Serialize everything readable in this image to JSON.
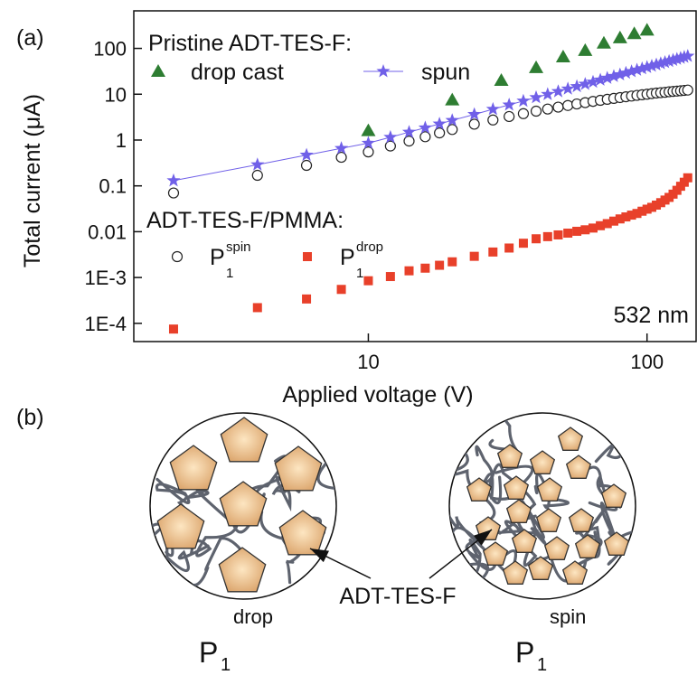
{
  "chart_data": {
    "type": "scatter",
    "panel_label": "(a)",
    "xlabel": "Applied voltage (V)",
    "ylabel": "Total current (μA)",
    "xscale": "log",
    "yscale": "log",
    "xlim": [
      1.44,
      150
    ],
    "ylim": [
      4e-05,
      660
    ],
    "xticks": [
      10,
      100
    ],
    "yticks": [
      {
        "value": 0.0001,
        "label": "1E-4"
      },
      {
        "value": 0.001,
        "label": "1E-3"
      },
      0.01,
      0.1,
      1,
      10,
      100
    ],
    "legend_titles": [
      "Pristine ADT-TES-F:",
      "ADT-TES-F/PMMA:"
    ],
    "annotations": [
      "532 nm"
    ],
    "x": [
      2,
      4,
      6,
      8,
      10,
      12,
      14,
      16,
      18,
      20,
      24,
      28,
      32,
      36,
      40,
      44,
      48,
      52,
      56,
      60,
      64,
      68,
      72,
      76,
      80,
      84,
      88,
      92,
      96,
      100,
      104,
      108,
      112,
      116,
      120,
      124,
      128,
      132,
      136,
      140
    ],
    "series": [
      {
        "name": "drop cast",
        "marker": "triangle",
        "color": "#2e7d32",
        "x": [
          10,
          20,
          30,
          40,
          50,
          60,
          70,
          80,
          90,
          100
        ],
        "values": [
          1.6,
          7.5,
          20,
          38,
          65,
          90,
          130,
          170,
          210,
          250
        ]
      },
      {
        "name": "spun",
        "marker": "star",
        "color": "#7060e8",
        "line": true,
        "values": [
          0.13,
          0.29,
          0.47,
          0.66,
          0.855,
          1.15,
          1.49,
          1.85,
          2.25,
          2.69,
          3.63,
          4.7,
          5.86,
          7.12,
          8.49,
          9.95,
          11.5,
          13.1,
          14.8,
          16.6,
          18.5,
          20.5,
          22.5,
          24.6,
          26.8,
          29.1,
          31.4,
          33.8,
          36.3,
          38.8,
          41.4,
          44.1,
          46.9,
          49.7,
          52.6,
          55.5,
          58.5,
          61.6,
          64.7,
          67.9
        ]
      },
      {
        "name": "P",
        "name_sub": "1",
        "name_sup": "spin",
        "marker": "circle",
        "color": "#222222",
        "values": [
          0.07,
          0.17,
          0.28,
          0.42,
          0.55,
          0.74,
          0.95,
          1.18,
          1.43,
          1.7,
          2.22,
          2.74,
          3.26,
          3.77,
          4.27,
          4.75,
          5.23,
          5.68,
          6.13,
          6.55,
          6.97,
          7.36,
          7.74,
          8.1,
          8.45,
          8.79,
          9.12,
          9.42,
          9.72,
          10,
          10.3,
          10.6,
          10.8,
          11,
          11.3,
          11.5,
          11.7,
          11.9,
          12.1,
          12.3
        ]
      },
      {
        "name": "P",
        "name_sub": "1",
        "name_sup": "drop",
        "marker": "square",
        "color": "#e8402a",
        "values": [
          7.5e-05,
          0.00022,
          0.00034,
          0.00055,
          0.00085,
          0.00105,
          0.0014,
          0.0016,
          0.00185,
          0.0022,
          0.0029,
          0.0036,
          0.0044,
          0.0056,
          0.007,
          0.0078,
          0.0085,
          0.0093,
          0.0102,
          0.011,
          0.012,
          0.0135,
          0.015,
          0.017,
          0.019,
          0.021,
          0.023,
          0.025,
          0.028,
          0.031,
          0.034,
          0.038,
          0.043,
          0.049,
          0.056,
          0.066,
          0.08,
          0.098,
          0.12,
          0.15
        ]
      }
    ]
  },
  "diagram": {
    "panel_label": "(b)",
    "arrow_label": "ADT-TES-F",
    "left": {
      "name": "P",
      "sub": "1",
      "sup": "drop"
    },
    "right": {
      "name": "P",
      "sub": "1",
      "sup": "spin"
    }
  }
}
